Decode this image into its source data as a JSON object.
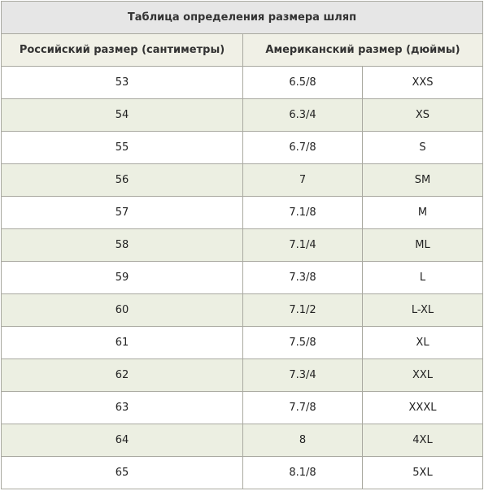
{
  "table": {
    "title": "Таблица определения размера шляп",
    "headers": {
      "russian": "Российский размер (сантиметры)",
      "american": "Американский размер (дюймы)"
    },
    "rows": [
      {
        "ru": "53",
        "inches": "6.5/8",
        "label": "XXS"
      },
      {
        "ru": "54",
        "inches": "6.3/4",
        "label": "XS"
      },
      {
        "ru": "55",
        "inches": "6.7/8",
        "label": "S"
      },
      {
        "ru": "56",
        "inches": "7",
        "label": "SM"
      },
      {
        "ru": "57",
        "inches": "7.1/8",
        "label": "M"
      },
      {
        "ru": "58",
        "inches": "7.1/4",
        "label": "ML"
      },
      {
        "ru": "59",
        "inches": "7.3/8",
        "label": "L"
      },
      {
        "ru": "60",
        "inches": "7.1/2",
        "label": "L-XL"
      },
      {
        "ru": "61",
        "inches": "7.5/8",
        "label": "XL"
      },
      {
        "ru": "62",
        "inches": "7.3/4",
        "label": "XXL"
      },
      {
        "ru": "63",
        "inches": "7.7/8",
        "label": "XXXL"
      },
      {
        "ru": "64",
        "inches": "8",
        "label": "4XL"
      },
      {
        "ru": "65",
        "inches": "8.1/8",
        "label": "5XL"
      }
    ]
  },
  "colors": {
    "border": "#a9a9a0",
    "title_bg": "#e6e6e6",
    "header_bg": "#f0f0e6",
    "row_odd_bg": "#ffffff",
    "row_even_bg": "#ecefe2"
  }
}
